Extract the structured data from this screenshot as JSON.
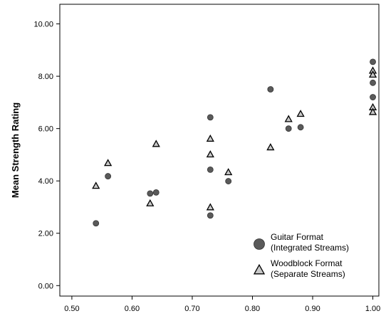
{
  "chart_data": {
    "type": "scatter",
    "title": "",
    "xlabel": "",
    "ylabel": "Mean Strength Rating",
    "xlim": [
      0.48,
      1.01
    ],
    "ylim": [
      -0.4,
      10.75
    ],
    "x_ticks": [
      "0.50",
      "0.60",
      "0.70",
      "0.80",
      "0.90",
      "1.00"
    ],
    "y_ticks": [
      "0.00",
      "2.00",
      "4.00",
      "6.00",
      "8.00",
      "10.00"
    ],
    "grid": false,
    "legend_position": "bottom-right",
    "series": [
      {
        "name": "Guitar Format (Integrated Streams)",
        "legend_lines": [
          "Guitar Format",
          "(Integrated Streams)"
        ],
        "marker": "circle",
        "color": "#5a5a5a",
        "points": [
          {
            "x": 0.54,
            "y": 2.38
          },
          {
            "x": 0.56,
            "y": 4.18
          },
          {
            "x": 0.63,
            "y": 3.52
          },
          {
            "x": 0.64,
            "y": 3.56
          },
          {
            "x": 0.73,
            "y": 6.43
          },
          {
            "x": 0.73,
            "y": 4.43
          },
          {
            "x": 0.73,
            "y": 2.68
          },
          {
            "x": 0.76,
            "y": 3.99
          },
          {
            "x": 0.83,
            "y": 7.5
          },
          {
            "x": 0.86,
            "y": 6.0
          },
          {
            "x": 0.88,
            "y": 6.05
          },
          {
            "x": 1.0,
            "y": 8.55
          },
          {
            "x": 1.0,
            "y": 7.75
          },
          {
            "x": 1.0,
            "y": 7.2
          }
        ]
      },
      {
        "name": "Woodblock Format (Separate Streams)",
        "legend_lines": [
          "Woodblock Format",
          "(Separate Streams)"
        ],
        "marker": "triangle",
        "color": "#c8c8c8",
        "points": [
          {
            "x": 0.54,
            "y": 3.8
          },
          {
            "x": 0.56,
            "y": 4.67
          },
          {
            "x": 0.63,
            "y": 3.13
          },
          {
            "x": 0.64,
            "y": 5.4
          },
          {
            "x": 0.73,
            "y": 5.6
          },
          {
            "x": 0.73,
            "y": 5.0
          },
          {
            "x": 0.73,
            "y": 2.98
          },
          {
            "x": 0.76,
            "y": 4.32
          },
          {
            "x": 0.83,
            "y": 5.27
          },
          {
            "x": 0.86,
            "y": 6.35
          },
          {
            "x": 0.88,
            "y": 6.55
          },
          {
            "x": 1.0,
            "y": 8.2
          },
          {
            "x": 1.0,
            "y": 8.05
          },
          {
            "x": 1.0,
            "y": 6.8
          },
          {
            "x": 1.0,
            "y": 6.62
          }
        ]
      }
    ]
  }
}
